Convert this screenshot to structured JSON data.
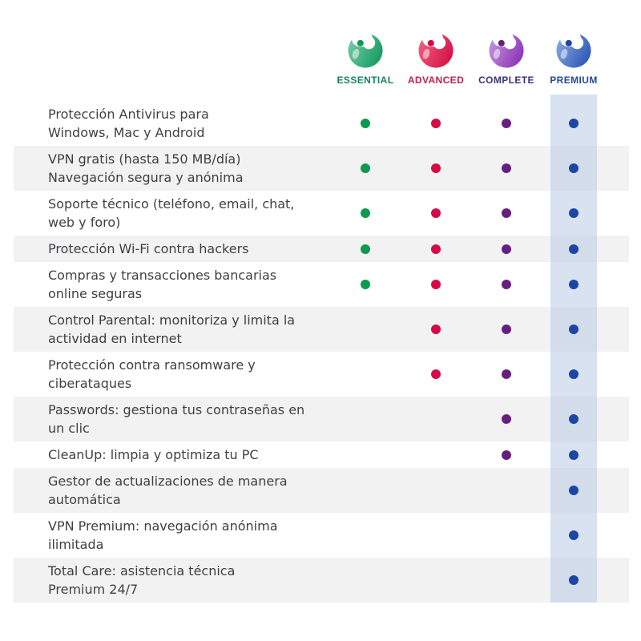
{
  "colors": {
    "page_bg": "#ffffff",
    "row_alt_bg": "#f2f2f3",
    "feature_text": "#3d3f42",
    "premium_band": "rgba(180,199,227,0.52)"
  },
  "products": [
    {
      "id": "essential",
      "label": "ESSENTIAL",
      "label_color": "#1a7f63",
      "dot_color": "#0a9b50",
      "icon_light": "#74cba2",
      "icon_dark": "#129a62",
      "highlighted": false
    },
    {
      "id": "advanced",
      "label": "ADVANCED",
      "label_color": "#c32051",
      "dot_color": "#d60b46",
      "icon_light": "#f0617f",
      "icon_dark": "#d40e45",
      "highlighted": false
    },
    {
      "id": "complete",
      "label": "COMPLETE",
      "label_color": "#3d3379",
      "dot_color": "#671f7f",
      "icon_light": "#c193dc",
      "icon_dark": "#8c30b4",
      "highlighted": false
    },
    {
      "id": "premium",
      "label": "PREMIUM",
      "label_color": "#25489e",
      "dot_color": "#1c46a5",
      "icon_light": "#85a6e0",
      "icon_dark": "#2a56b4",
      "highlighted": true
    }
  ],
  "features": [
    {
      "lines": [
        "Protección Antivirus para",
        "Windows, Mac y Android"
      ],
      "included": [
        true,
        true,
        true,
        true
      ]
    },
    {
      "lines": [
        "VPN gratis (hasta 150 MB/día)",
        "Navegación segura y anónima"
      ],
      "included": [
        true,
        true,
        true,
        true
      ]
    },
    {
      "lines": [
        "Soporte técnico (teléfono, email, chat,",
        "web y foro)"
      ],
      "included": [
        true,
        true,
        true,
        true
      ]
    },
    {
      "lines": [
        "Protección Wi-Fi contra hackers"
      ],
      "included": [
        true,
        true,
        true,
        true
      ]
    },
    {
      "lines": [
        "Compras y transacciones bancarias",
        "online seguras"
      ],
      "included": [
        true,
        true,
        true,
        true
      ]
    },
    {
      "lines": [
        "Control Parental: monitoriza y limita la",
        "actividad en internet"
      ],
      "included": [
        false,
        true,
        true,
        true
      ]
    },
    {
      "lines": [
        "Protección contra ransomware y",
        "ciberataques"
      ],
      "included": [
        false,
        true,
        true,
        true
      ]
    },
    {
      "lines": [
        "Passwords: gestiona tus contraseñas en",
        "un clic"
      ],
      "included": [
        false,
        false,
        true,
        true
      ]
    },
    {
      "lines": [
        "CleanUp: limpia y optimiza tu PC"
      ],
      "included": [
        false,
        false,
        true,
        true
      ]
    },
    {
      "lines": [
        "Gestor de actualizaciones de manera",
        "automática"
      ],
      "included": [
        false,
        false,
        false,
        true
      ]
    },
    {
      "lines": [
        "VPN Premium: navegación anónima",
        "ilimitada"
      ],
      "included": [
        false,
        false,
        false,
        true
      ]
    },
    {
      "lines": [
        "Total Care: asistencia técnica",
        "Premium 24/7"
      ],
      "included": [
        false,
        false,
        false,
        true
      ]
    }
  ]
}
